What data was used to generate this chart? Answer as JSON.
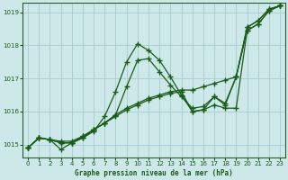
{
  "title": "Graphe pression niveau de la mer (hPa)",
  "bg_color": "#cce8e8",
  "grid_color": "#aacccc",
  "line_color": "#1a5c1a",
  "xlim": [
    -0.5,
    23.5
  ],
  "ylim": [
    1014.6,
    1019.3
  ],
  "yticks": [
    1015,
    1016,
    1017,
    1018,
    1019
  ],
  "xticks": [
    0,
    1,
    2,
    3,
    4,
    5,
    6,
    7,
    8,
    9,
    10,
    11,
    12,
    13,
    14,
    15,
    16,
    17,
    18,
    19,
    20,
    21,
    22,
    23
  ],
  "series": [
    [
      1014.9,
      1015.2,
      1015.15,
      1014.85,
      1015.05,
      1015.2,
      1015.4,
      1015.85,
      1016.6,
      1017.5,
      1018.05,
      1017.85,
      1017.55,
      1017.05,
      1016.5,
      1016.0,
      1016.05,
      1016.45,
      1016.2,
      1017.05,
      1018.55,
      1018.75,
      1019.1,
      1019.2
    ],
    [
      1014.9,
      1015.2,
      1015.15,
      1015.05,
      1015.05,
      1015.2,
      1015.45,
      1015.65,
      1015.85,
      1016.05,
      1016.2,
      1016.35,
      1016.45,
      1016.55,
      1016.6,
      1016.0,
      1016.05,
      1016.2,
      1016.1,
      1016.1,
      1018.45,
      1018.65,
      1019.05,
      1019.2
    ],
    [
      1014.9,
      1015.2,
      1015.15,
      1015.1,
      1015.1,
      1015.25,
      1015.45,
      1015.65,
      1015.9,
      1016.1,
      1016.25,
      1016.4,
      1016.5,
      1016.6,
      1016.65,
      1016.65,
      1016.75,
      1016.85,
      1016.95,
      1017.05,
      1018.45,
      1018.65,
      1019.05,
      1019.2
    ],
    [
      1014.9,
      1015.2,
      1015.15,
      1015.05,
      1015.05,
      1015.25,
      1015.45,
      1015.65,
      1015.9,
      1016.75,
      1017.55,
      1017.6,
      1017.2,
      1016.8,
      1016.45,
      1016.1,
      1016.15,
      1016.45,
      1016.25,
      1017.05,
      1018.55,
      1018.75,
      1019.1,
      1019.2
    ]
  ]
}
